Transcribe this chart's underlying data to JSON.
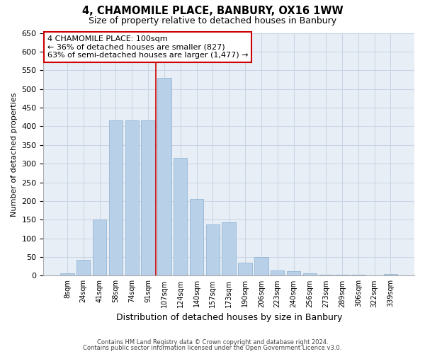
{
  "title": "4, CHAMOMILE PLACE, BANBURY, OX16 1WW",
  "subtitle": "Size of property relative to detached houses in Banbury",
  "xlabel": "Distribution of detached houses by size in Banbury",
  "ylabel": "Number of detached properties",
  "categories": [
    "8sqm",
    "24sqm",
    "41sqm",
    "58sqm",
    "74sqm",
    "91sqm",
    "107sqm",
    "124sqm",
    "140sqm",
    "157sqm",
    "173sqm",
    "190sqm",
    "206sqm",
    "223sqm",
    "240sqm",
    "256sqm",
    "273sqm",
    "289sqm",
    "306sqm",
    "322sqm",
    "339sqm"
  ],
  "values": [
    7,
    43,
    150,
    415,
    415,
    415,
    530,
    315,
    205,
    137,
    143,
    35,
    50,
    15,
    12,
    7,
    2,
    3,
    2,
    1,
    5
  ],
  "bar_color": "#b8d0e8",
  "bar_edge_color": "#8ab0d0",
  "grid_color": "#c8d4e4",
  "background_color": "#e8eef6",
  "red_line_x": 6.0,
  "annotation_text": "4 CHAMOMILE PLACE: 100sqm\n← 36% of detached houses are smaller (827)\n63% of semi-detached houses are larger (1,477) →",
  "annotation_box_color": "#ffffff",
  "annotation_box_edge": "#cc0000",
  "ylim": [
    0,
    650
  ],
  "yticks": [
    0,
    50,
    100,
    150,
    200,
    250,
    300,
    350,
    400,
    450,
    500,
    550,
    600,
    650
  ],
  "footer_line1": "Contains HM Land Registry data © Crown copyright and database right 2024.",
  "footer_line2": "Contains public sector information licensed under the Open Government Licence v3.0."
}
